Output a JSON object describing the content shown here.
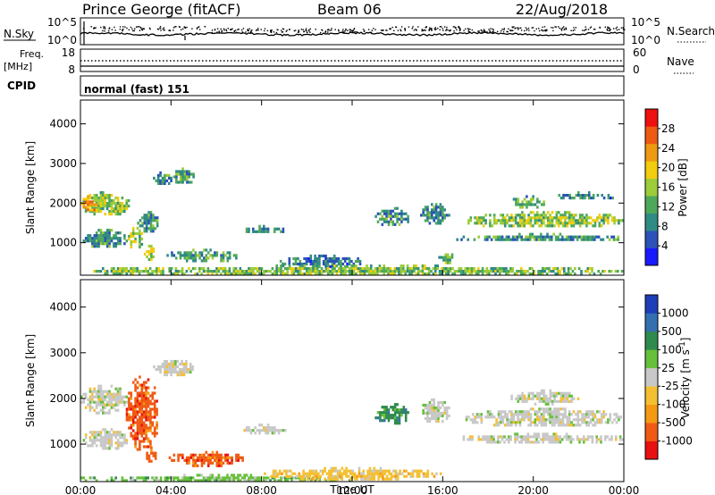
{
  "header": {
    "station": "Prince George (fitACF)",
    "beam": "Beam 06",
    "date": "22/Aug/2018"
  },
  "top_panels": {
    "nsky_label": "N.Sky",
    "nsky_ticks": [
      "10^5",
      "10^0"
    ],
    "nsearch_label": "N.Search",
    "nsearch_ticks": [
      "10^5",
      "10^0"
    ],
    "freq_label": "Freq.",
    "freq_unit": "[MHz]",
    "freq_ticks": [
      "18",
      "8"
    ],
    "nave_label": "Nave",
    "nave_ticks": [
      "60",
      "0"
    ],
    "cpid_label": "CPID",
    "cpid_value": "normal (fast) 151"
  },
  "colors": {
    "power": [
      "#1a1aff",
      "#2a52b8",
      "#2f8a84",
      "#4ea85a",
      "#9ccc3a",
      "#f2cc0e",
      "#ee9a12",
      "#ee5a14",
      "#ee1010"
    ],
    "velocity": [
      "#1c3eb8",
      "#3470b0",
      "#2f8a4e",
      "#66c03a",
      "#c8c8c8",
      "#f4c032",
      "#f49a12",
      "#f05a14",
      "#e81010"
    ],
    "ground": "#c8c8c8"
  },
  "chart_data": [
    {
      "type": "heatmap",
      "name": "power",
      "xlabel": "Time UT",
      "ylabel": "Slant Range [km]",
      "xlim": [
        0,
        24
      ],
      "ylim": [
        180,
        4600
      ],
      "x_ticks": [
        "00:00",
        "04:00",
        "08:00",
        "12:00",
        "16:00",
        "20:00",
        "00:00"
      ],
      "y_ticks": [
        1000,
        2000,
        3000,
        4000
      ],
      "colorbar": {
        "label": "Power [dB]",
        "ticks": [
          "4",
          "8",
          "12",
          "16",
          "20",
          "24",
          "28"
        ],
        "range": [
          0,
          30
        ]
      },
      "regions": [
        {
          "t": [
            0,
            2.1
          ],
          "r": [
            1700,
            2300
          ],
          "v": 14
        },
        {
          "t": [
            0,
            0.8
          ],
          "r": [
            1800,
            2200
          ],
          "v": 22
        },
        {
          "t": [
            0.1,
            2
          ],
          "r": [
            900,
            1350
          ],
          "v": 8
        },
        {
          "t": [
            2,
            2.8
          ],
          "r": [
            900,
            1400
          ],
          "v": 14
        },
        {
          "t": [
            2.5,
            3.4
          ],
          "r": [
            1300,
            1800
          ],
          "v": 9
        },
        {
          "t": [
            2.8,
            3.3
          ],
          "r": [
            600,
            950
          ],
          "v": 16
        },
        {
          "t": [
            3.2,
            4.0
          ],
          "r": [
            2500,
            2800
          ],
          "v": 8
        },
        {
          "t": [
            4.0,
            5.0
          ],
          "r": [
            2500,
            2900
          ],
          "v": 10
        },
        {
          "t": [
            3.8,
            7.0
          ],
          "r": [
            550,
            850
          ],
          "v": 10
        },
        {
          "t": [
            7.2,
            9.0
          ],
          "r": [
            1250,
            1450
          ],
          "v": 7
        },
        {
          "t": [
            8.8,
            12.5
          ],
          "r": [
            400,
            700
          ],
          "v": 7
        },
        {
          "t": [
            13.0,
            14.5
          ],
          "r": [
            1450,
            1900
          ],
          "v": 9
        },
        {
          "t": [
            15.0,
            16.3
          ],
          "r": [
            1500,
            2000
          ],
          "v": 8
        },
        {
          "t": [
            15.8,
            16.5
          ],
          "r": [
            500,
            800
          ],
          "v": 12
        },
        {
          "t": [
            16.5,
            24
          ],
          "r": [
            1050,
            1250
          ],
          "v": 9
        },
        {
          "t": [
            17,
            24
          ],
          "r": [
            1400,
            1800
          ],
          "v": 14
        },
        {
          "t": [
            19,
            20.5
          ],
          "r": [
            1900,
            2200
          ],
          "v": 10
        },
        {
          "t": [
            21,
            23.5
          ],
          "r": [
            2100,
            2300
          ],
          "v": 7
        },
        {
          "t": [
            0,
            24
          ],
          "r": [
            180,
            450
          ],
          "v": 13
        }
      ]
    },
    {
      "type": "heatmap",
      "name": "velocity",
      "xlabel": "Time UT",
      "ylabel": "Slant Range [km]",
      "xlim": [
        0,
        24
      ],
      "ylim": [
        180,
        4600
      ],
      "x_ticks": [
        "00:00",
        "04:00",
        "08:00",
        "12:00",
        "16:00",
        "20:00",
        "00:00"
      ],
      "y_ticks": [
        1000,
        2000,
        3000,
        4000
      ],
      "colorbar": {
        "label": "Velocity [m s",
        "label_sup": "-1",
        "label_end": "]",
        "ticks": [
          "1000",
          "500",
          "100",
          "25",
          "-25",
          "-100",
          "-500",
          "-1000"
        ]
      },
      "regions": [
        {
          "t": [
            0,
            2.1
          ],
          "r": [
            1700,
            2300
          ],
          "v": 4
        },
        {
          "t": [
            0.1,
            2
          ],
          "r": [
            900,
            1350
          ],
          "v": 4
        },
        {
          "t": [
            2,
            3.4
          ],
          "r": [
            900,
            2500
          ],
          "v": 7
        },
        {
          "t": [
            2.8,
            3.3
          ],
          "r": [
            600,
            950
          ],
          "v": 7
        },
        {
          "t": [
            3.2,
            5.0
          ],
          "r": [
            2500,
            2900
          ],
          "v": 4
        },
        {
          "t": [
            3.8,
            7.2
          ],
          "r": [
            550,
            850
          ],
          "v": 7
        },
        {
          "t": [
            7.2,
            9.0
          ],
          "r": [
            1250,
            1450
          ],
          "v": 4
        },
        {
          "t": [
            13.0,
            14.5
          ],
          "r": [
            1450,
            1900
          ],
          "v": 2
        },
        {
          "t": [
            15.0,
            16.3
          ],
          "r": [
            1500,
            2000
          ],
          "v": 4
        },
        {
          "t": [
            16.5,
            24
          ],
          "r": [
            1050,
            1250
          ],
          "v": 4
        },
        {
          "t": [
            17,
            24
          ],
          "r": [
            1400,
            1800
          ],
          "v": 4
        },
        {
          "t": [
            19,
            22
          ],
          "r": [
            1900,
            2200
          ],
          "v": 4
        },
        {
          "t": [
            0,
            12
          ],
          "r": [
            180,
            350
          ],
          "v": 3
        },
        {
          "t": [
            8,
            16
          ],
          "r": [
            250,
            500
          ],
          "v": 5
        }
      ]
    }
  ]
}
